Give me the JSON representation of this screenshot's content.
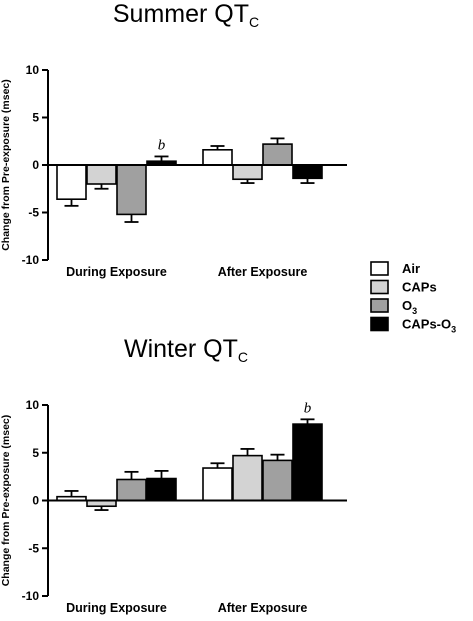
{
  "chart_data": [
    {
      "type": "bar",
      "title": "Summer QT",
      "title_sub": "C",
      "ylabel": "Change from Pre-exposure (msec)",
      "ylim": [
        -10,
        10
      ],
      "yticks": [
        "10",
        "5",
        "0",
        "-5",
        "-10"
      ],
      "categories": [
        "During Exposure",
        "After Exposure"
      ],
      "series": [
        {
          "name": "Air",
          "values": [
            -3.6,
            1.6
          ],
          "errors": [
            0.7,
            0.4
          ]
        },
        {
          "name": "CAPs",
          "values": [
            -2.0,
            -1.5
          ],
          "errors": [
            0.5,
            0.4
          ]
        },
        {
          "name": "O3",
          "values": [
            -5.2,
            2.2
          ],
          "errors": [
            0.8,
            0.6
          ]
        },
        {
          "name": "CAPs-O3",
          "values": [
            0.4,
            -1.4
          ],
          "errors": [
            0.5,
            0.5
          ]
        }
      ],
      "annotations": [
        {
          "text": "b",
          "category": 0,
          "series": 3
        }
      ]
    },
    {
      "type": "bar",
      "title": "Winter QT",
      "title_sub": "C",
      "ylabel": "Change from Pre-exposure (msec)",
      "ylim": [
        -10,
        10
      ],
      "yticks": [
        "10",
        "5",
        "0",
        "-5",
        "-10"
      ],
      "categories": [
        "During Exposure",
        "After Exposure"
      ],
      "series": [
        {
          "name": "Air",
          "values": [
            0.4,
            3.4
          ],
          "errors": [
            0.6,
            0.5
          ]
        },
        {
          "name": "CAPs",
          "values": [
            -0.6,
            4.7
          ],
          "errors": [
            0.4,
            0.7
          ]
        },
        {
          "name": "O3",
          "values": [
            2.2,
            4.2
          ],
          "errors": [
            0.8,
            0.6
          ]
        },
        {
          "name": "CAPs-O3",
          "values": [
            2.3,
            8.0
          ],
          "errors": [
            0.8,
            0.5
          ]
        }
      ],
      "annotations": [
        {
          "text": "b",
          "category": 1,
          "series": 3
        }
      ]
    }
  ],
  "legend": {
    "position": "right",
    "items": [
      {
        "label": "Air",
        "label_sub": "",
        "label_suffix": "",
        "fill": "#ffffff"
      },
      {
        "label": "CAPs",
        "label_sub": "",
        "label_suffix": "",
        "fill": "#d3d3d3"
      },
      {
        "label": "O",
        "label_sub": "3",
        "label_suffix": "",
        "fill": "#a0a0a0"
      },
      {
        "label": "CAPs-O",
        "label_sub": "3",
        "label_suffix": "",
        "fill": "#000000"
      }
    ]
  },
  "colors": {
    "air": "#ffffff",
    "caps": "#d3d3d3",
    "o3": "#a0a0a0",
    "caps_o3": "#000000",
    "axis": "#000000"
  }
}
